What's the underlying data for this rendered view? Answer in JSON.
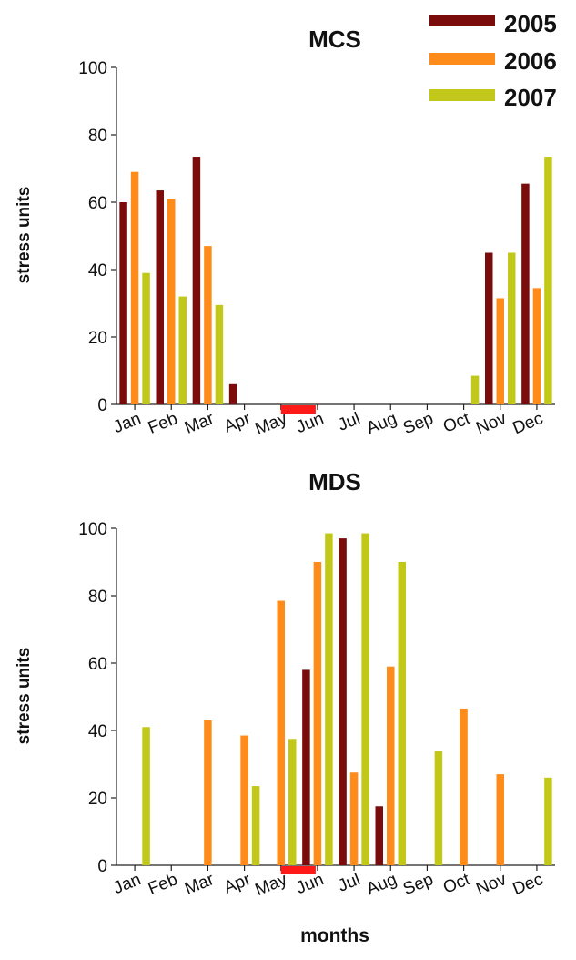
{
  "chart_data": [
    {
      "type": "bar",
      "title": "MCS",
      "xlabel": "",
      "ylabel": "stress units",
      "ylim": [
        0,
        100
      ],
      "yticks": [
        0,
        20,
        40,
        60,
        80,
        100
      ],
      "categories": [
        "Jan",
        "Feb",
        "Mar",
        "Apr",
        "May",
        "Jun",
        "Jul",
        "Aug",
        "Sep",
        "Oct",
        "Nov",
        "Dec"
      ],
      "series": [
        {
          "name": "2005",
          "color": "#7b0c0c",
          "values": [
            60,
            63.5,
            73.5,
            6,
            0,
            0,
            0,
            0,
            0,
            0,
            45,
            65.5
          ]
        },
        {
          "name": "2006",
          "color": "#ff8c1a",
          "values": [
            69,
            61,
            47,
            0,
            0,
            0,
            0,
            0,
            0,
            0,
            31.5,
            34.5
          ]
        },
        {
          "name": "2007",
          "color": "#c2c81a",
          "values": [
            39,
            32,
            29.5,
            0,
            0,
            0,
            0,
            0,
            0,
            8.5,
            45,
            73.5
          ]
        }
      ],
      "highlight": {
        "start": 4.5,
        "end": 5.0,
        "color": "#ff1a1a"
      },
      "legend": "top-right",
      "grid": false
    },
    {
      "type": "bar",
      "title": "MDS",
      "xlabel": "months",
      "ylabel": "stress units",
      "ylim": [
        0,
        100
      ],
      "yticks": [
        0,
        20,
        40,
        60,
        80,
        100
      ],
      "categories": [
        "Jan",
        "Feb",
        "Mar",
        "Apr",
        "May",
        "Jun",
        "Jul",
        "Aug",
        "Sep",
        "Oct",
        "Nov",
        "Dec"
      ],
      "series": [
        {
          "name": "2005",
          "color": "#7b0c0c",
          "values": [
            0,
            0,
            0,
            0,
            0,
            58,
            97,
            17.5,
            0,
            0,
            0,
            0
          ]
        },
        {
          "name": "2006",
          "color": "#ff8c1a",
          "values": [
            0,
            0,
            43,
            38.5,
            78.5,
            90,
            27.5,
            59,
            0,
            46.5,
            27,
            0
          ]
        },
        {
          "name": "2007",
          "color": "#c2c81a",
          "values": [
            41,
            0,
            0,
            23.5,
            37.5,
            98.5,
            98.5,
            90,
            34,
            0,
            0,
            26
          ]
        }
      ],
      "highlight": {
        "start": 4.5,
        "end": 5.0,
        "color": "#ff1a1a"
      },
      "grid": false
    }
  ]
}
